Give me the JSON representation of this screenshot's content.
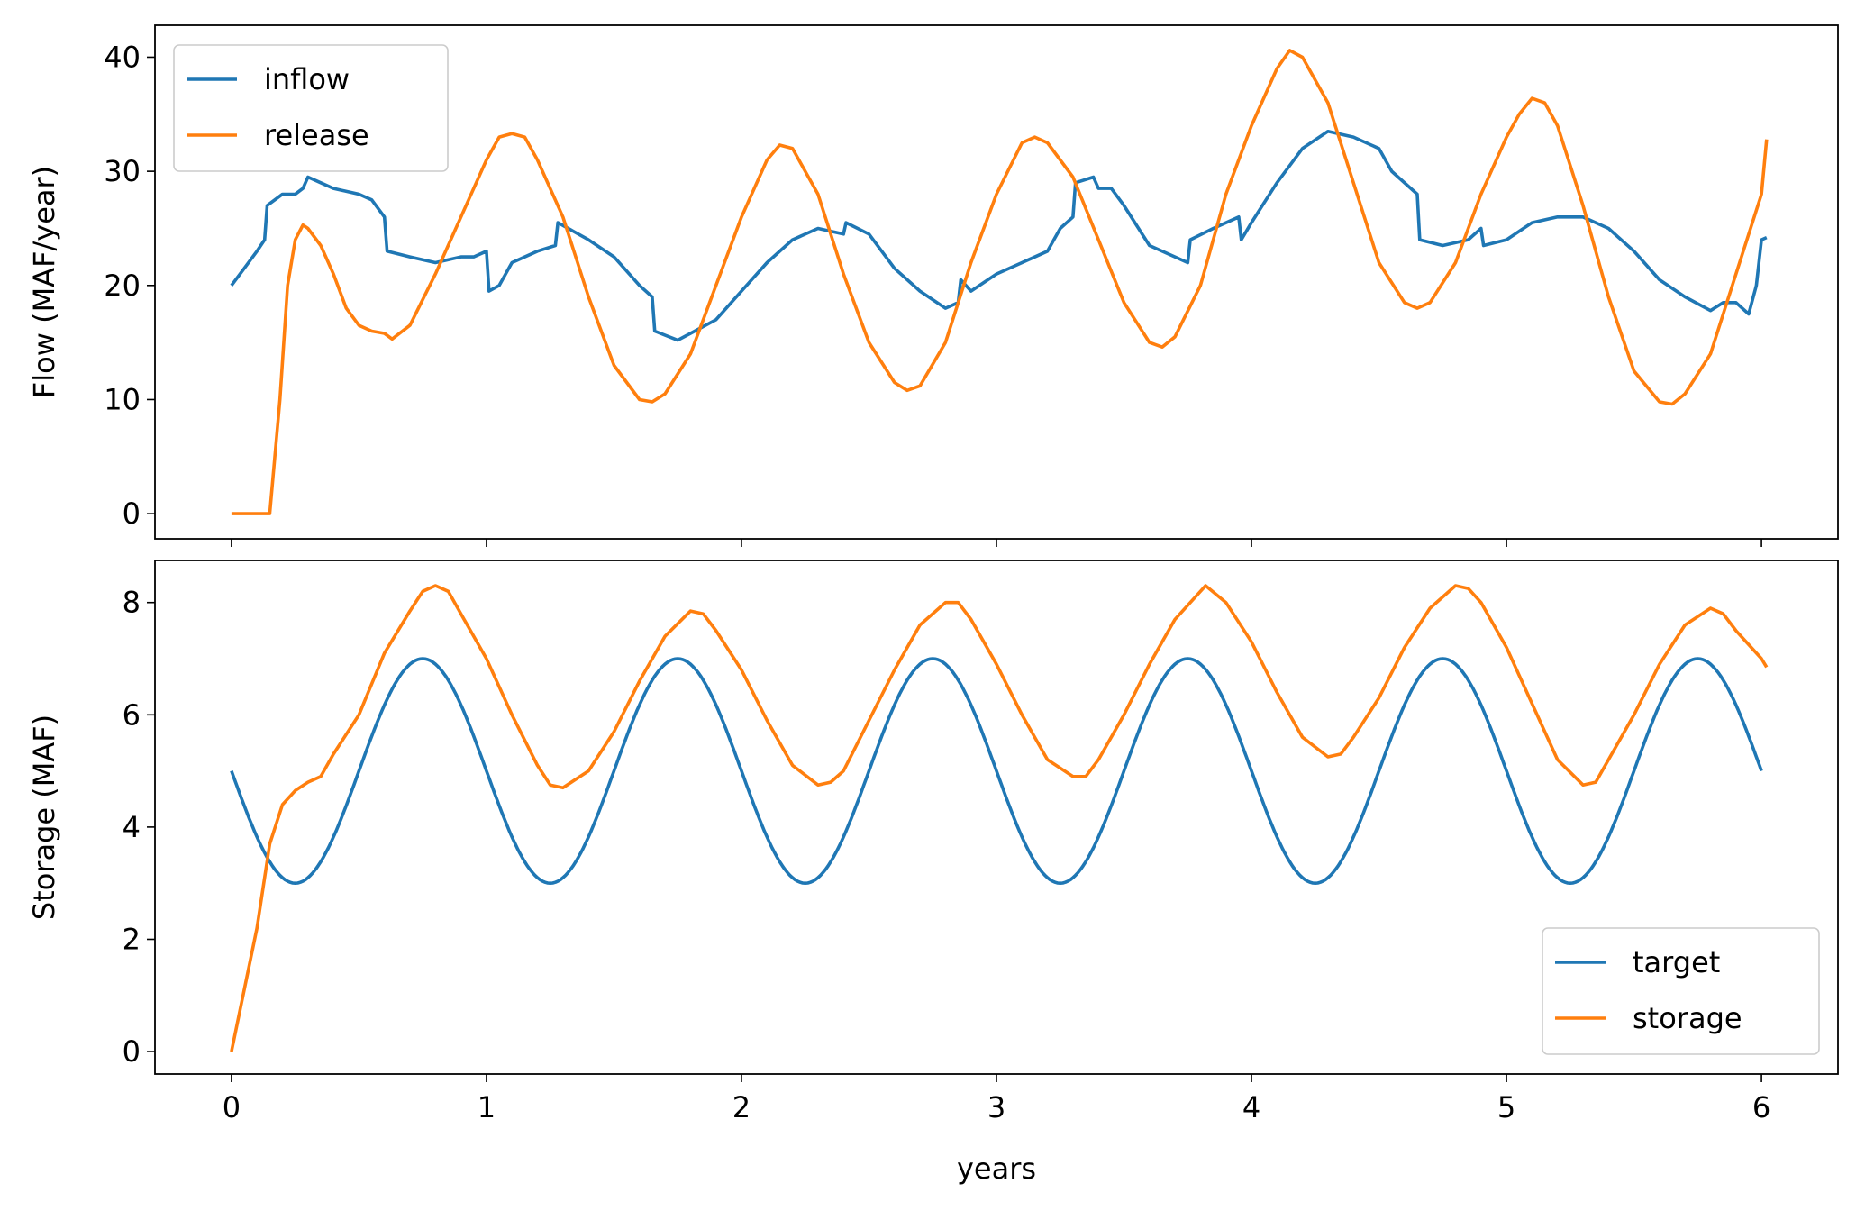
{
  "figure": {
    "xlabel": "years",
    "xticks": [
      0,
      1,
      2,
      3,
      4,
      5,
      6
    ],
    "xlim": [
      -0.3,
      6.3
    ]
  },
  "colors": {
    "blue": "#1f77b4",
    "orange": "#ff7f0e"
  },
  "chart_data": [
    {
      "type": "line",
      "ylabel": "Flow (MAF/year)",
      "xlabel": "",
      "ylim": [
        -2.2,
        42.8
      ],
      "yticks": [
        0,
        10,
        20,
        30,
        40
      ],
      "legend": {
        "placement": "top-left",
        "entries": [
          "inflow",
          "release"
        ]
      },
      "series": [
        {
          "name": "inflow",
          "color": "#1f77b4",
          "points": [
            [
              0,
              20
            ],
            [
              0.05,
              21.5
            ],
            [
              0.1,
              23
            ],
            [
              0.13,
              24
            ],
            [
              0.14,
              27
            ],
            [
              0.2,
              28
            ],
            [
              0.25,
              28
            ],
            [
              0.28,
              28.5
            ],
            [
              0.3,
              29.5
            ],
            [
              0.35,
              29
            ],
            [
              0.4,
              28.5
            ],
            [
              0.5,
              28
            ],
            [
              0.55,
              27.5
            ],
            [
              0.6,
              26
            ],
            [
              0.61,
              23
            ],
            [
              0.7,
              22.5
            ],
            [
              0.8,
              22
            ],
            [
              0.9,
              22.5
            ],
            [
              0.95,
              22.5
            ],
            [
              1.0,
              23
            ],
            [
              1.01,
              19.5
            ],
            [
              1.05,
              20
            ],
            [
              1.1,
              22
            ],
            [
              1.2,
              23
            ],
            [
              1.27,
              23.5
            ],
            [
              1.28,
              25.5
            ],
            [
              1.4,
              24
            ],
            [
              1.5,
              22.5
            ],
            [
              1.6,
              20
            ],
            [
              1.65,
              19
            ],
            [
              1.66,
              16
            ],
            [
              1.75,
              15.2
            ],
            [
              1.8,
              15.8
            ],
            [
              1.9,
              17
            ],
            [
              2.0,
              19.5
            ],
            [
              2.1,
              22
            ],
            [
              2.2,
              24
            ],
            [
              2.3,
              25
            ],
            [
              2.4,
              24.5
            ],
            [
              2.41,
              25.5
            ],
            [
              2.5,
              24.5
            ],
            [
              2.6,
              21.5
            ],
            [
              2.7,
              19.5
            ],
            [
              2.8,
              18
            ],
            [
              2.85,
              18.5
            ],
            [
              2.86,
              20.5
            ],
            [
              2.9,
              19.5
            ],
            [
              3.0,
              21
            ],
            [
              3.1,
              22
            ],
            [
              3.2,
              23
            ],
            [
              3.25,
              25
            ],
            [
              3.3,
              26
            ],
            [
              3.31,
              29
            ],
            [
              3.38,
              29.5
            ],
            [
              3.4,
              28.5
            ],
            [
              3.45,
              28.5
            ],
            [
              3.5,
              27
            ],
            [
              3.6,
              23.5
            ],
            [
              3.7,
              22.5
            ],
            [
              3.75,
              22
            ],
            [
              3.76,
              24
            ],
            [
              3.85,
              25
            ],
            [
              3.95,
              26
            ],
            [
              3.96,
              24
            ],
            [
              4.0,
              25.5
            ],
            [
              4.1,
              29
            ],
            [
              4.2,
              32
            ],
            [
              4.3,
              33.5
            ],
            [
              4.4,
              33
            ],
            [
              4.5,
              32
            ],
            [
              4.55,
              30
            ],
            [
              4.65,
              28
            ],
            [
              4.66,
              24
            ],
            [
              4.75,
              23.5
            ],
            [
              4.85,
              24
            ],
            [
              4.9,
              25
            ],
            [
              4.91,
              23.5
            ],
            [
              5.0,
              24
            ],
            [
              5.1,
              25.5
            ],
            [
              5.2,
              26
            ],
            [
              5.3,
              26
            ],
            [
              5.4,
              25
            ],
            [
              5.5,
              23
            ],
            [
              5.6,
              20.5
            ],
            [
              5.7,
              19
            ],
            [
              5.8,
              17.8
            ],
            [
              5.85,
              18.5
            ],
            [
              5.9,
              18.5
            ],
            [
              5.95,
              17.5
            ],
            [
              5.98,
              20
            ],
            [
              6.0,
              24
            ],
            [
              6.02,
              24.2
            ]
          ]
        },
        {
          "name": "release",
          "color": "#ff7f0e",
          "points": [
            [
              0,
              0
            ],
            [
              0.15,
              0
            ],
            [
              0.19,
              10
            ],
            [
              0.22,
              20
            ],
            [
              0.25,
              24
            ],
            [
              0.28,
              25.3
            ],
            [
              0.3,
              25
            ],
            [
              0.35,
              23.5
            ],
            [
              0.4,
              21
            ],
            [
              0.45,
              18
            ],
            [
              0.5,
              16.5
            ],
            [
              0.55,
              16
            ],
            [
              0.6,
              15.8
            ],
            [
              0.63,
              15.3
            ],
            [
              0.7,
              16.5
            ],
            [
              0.8,
              21
            ],
            [
              0.9,
              26
            ],
            [
              1.0,
              31
            ],
            [
              1.05,
              33
            ],
            [
              1.1,
              33.3
            ],
            [
              1.15,
              33
            ],
            [
              1.2,
              31
            ],
            [
              1.3,
              26
            ],
            [
              1.4,
              19
            ],
            [
              1.5,
              13
            ],
            [
              1.6,
              10
            ],
            [
              1.65,
              9.8
            ],
            [
              1.7,
              10.5
            ],
            [
              1.8,
              14
            ],
            [
              1.9,
              20
            ],
            [
              2.0,
              26
            ],
            [
              2.1,
              31
            ],
            [
              2.15,
              32.3
            ],
            [
              2.2,
              32
            ],
            [
              2.3,
              28
            ],
            [
              2.4,
              21
            ],
            [
              2.5,
              15
            ],
            [
              2.6,
              11.5
            ],
            [
              2.65,
              10.8
            ],
            [
              2.7,
              11.2
            ],
            [
              2.8,
              15
            ],
            [
              2.9,
              22
            ],
            [
              3.0,
              28
            ],
            [
              3.1,
              32.5
            ],
            [
              3.15,
              33
            ],
            [
              3.2,
              32.5
            ],
            [
              3.3,
              29.5
            ],
            [
              3.4,
              24
            ],
            [
              3.5,
              18.5
            ],
            [
              3.6,
              15
            ],
            [
              3.65,
              14.6
            ],
            [
              3.7,
              15.5
            ],
            [
              3.8,
              20
            ],
            [
              3.9,
              28
            ],
            [
              4.0,
              34
            ],
            [
              4.1,
              39
            ],
            [
              4.15,
              40.6
            ],
            [
              4.2,
              40
            ],
            [
              4.3,
              36
            ],
            [
              4.4,
              29
            ],
            [
              4.5,
              22
            ],
            [
              4.6,
              18.5
            ],
            [
              4.65,
              18
            ],
            [
              4.7,
              18.5
            ],
            [
              4.8,
              22
            ],
            [
              4.9,
              28
            ],
            [
              5.0,
              33
            ],
            [
              5.05,
              35
            ],
            [
              5.1,
              36.4
            ],
            [
              5.15,
              36
            ],
            [
              5.2,
              34
            ],
            [
              5.3,
              27
            ],
            [
              5.4,
              19
            ],
            [
              5.5,
              12.5
            ],
            [
              5.6,
              9.8
            ],
            [
              5.65,
              9.6
            ],
            [
              5.7,
              10.5
            ],
            [
              5.8,
              14
            ],
            [
              5.9,
              21
            ],
            [
              6.0,
              28
            ],
            [
              6.02,
              32.8
            ]
          ]
        }
      ]
    },
    {
      "type": "line",
      "ylabel": "Storage (MAF)",
      "xlabel": "years",
      "ylim": [
        -0.4,
        8.75
      ],
      "yticks": [
        0,
        2,
        4,
        6,
        8
      ],
      "legend": {
        "placement": "bottom-right",
        "entries": [
          "target",
          "storage"
        ]
      },
      "series": [
        {
          "name": "target",
          "color": "#1f77b4",
          "formula": "5 + 2*sin(2*pi*(x - 0.5))",
          "x_range": [
            0,
            6
          ]
        },
        {
          "name": "storage",
          "color": "#ff7f0e",
          "points": [
            [
              0,
              0
            ],
            [
              0.1,
              2.2
            ],
            [
              0.15,
              3.7
            ],
            [
              0.2,
              4.4
            ],
            [
              0.25,
              4.65
            ],
            [
              0.3,
              4.8
            ],
            [
              0.35,
              4.9
            ],
            [
              0.4,
              5.3
            ],
            [
              0.5,
              6
            ],
            [
              0.6,
              7.1
            ],
            [
              0.7,
              7.85
            ],
            [
              0.75,
              8.2
            ],
            [
              0.8,
              8.3
            ],
            [
              0.85,
              8.2
            ],
            [
              0.9,
              7.8
            ],
            [
              1.0,
              7.0
            ],
            [
              1.1,
              6.0
            ],
            [
              1.2,
              5.1
            ],
            [
              1.25,
              4.75
            ],
            [
              1.3,
              4.7
            ],
            [
              1.4,
              5.0
            ],
            [
              1.5,
              5.7
            ],
            [
              1.6,
              6.6
            ],
            [
              1.7,
              7.4
            ],
            [
              1.8,
              7.85
            ],
            [
              1.85,
              7.8
            ],
            [
              1.9,
              7.5
            ],
            [
              2.0,
              6.8
            ],
            [
              2.1,
              5.9
            ],
            [
              2.2,
              5.1
            ],
            [
              2.3,
              4.75
            ],
            [
              2.35,
              4.8
            ],
            [
              2.4,
              5.0
            ],
            [
              2.5,
              5.9
            ],
            [
              2.6,
              6.8
            ],
            [
              2.7,
              7.6
            ],
            [
              2.8,
              8.0
            ],
            [
              2.85,
              8.0
            ],
            [
              2.9,
              7.7
            ],
            [
              3.0,
              6.9
            ],
            [
              3.1,
              6.0
            ],
            [
              3.2,
              5.2
            ],
            [
              3.3,
              4.9
            ],
            [
              3.35,
              4.9
            ],
            [
              3.4,
              5.2
            ],
            [
              3.5,
              6.0
            ],
            [
              3.6,
              6.9
            ],
            [
              3.7,
              7.7
            ],
            [
              3.8,
              8.2
            ],
            [
              3.82,
              8.3
            ],
            [
              3.9,
              8.0
            ],
            [
              4.0,
              7.3
            ],
            [
              4.1,
              6.4
            ],
            [
              4.2,
              5.6
            ],
            [
              4.3,
              5.25
            ],
            [
              4.35,
              5.3
            ],
            [
              4.4,
              5.6
            ],
            [
              4.5,
              6.3
            ],
            [
              4.6,
              7.2
            ],
            [
              4.7,
              7.9
            ],
            [
              4.8,
              8.3
            ],
            [
              4.85,
              8.25
            ],
            [
              4.9,
              8.0
            ],
            [
              5.0,
              7.2
            ],
            [
              5.1,
              6.2
            ],
            [
              5.2,
              5.2
            ],
            [
              5.3,
              4.75
            ],
            [
              5.35,
              4.8
            ],
            [
              5.4,
              5.2
            ],
            [
              5.5,
              6.0
            ],
            [
              5.6,
              6.9
            ],
            [
              5.7,
              7.6
            ],
            [
              5.8,
              7.9
            ],
            [
              5.85,
              7.8
            ],
            [
              5.9,
              7.5
            ],
            [
              6.0,
              7.0
            ],
            [
              6.02,
              6.85
            ]
          ]
        }
      ]
    }
  ]
}
